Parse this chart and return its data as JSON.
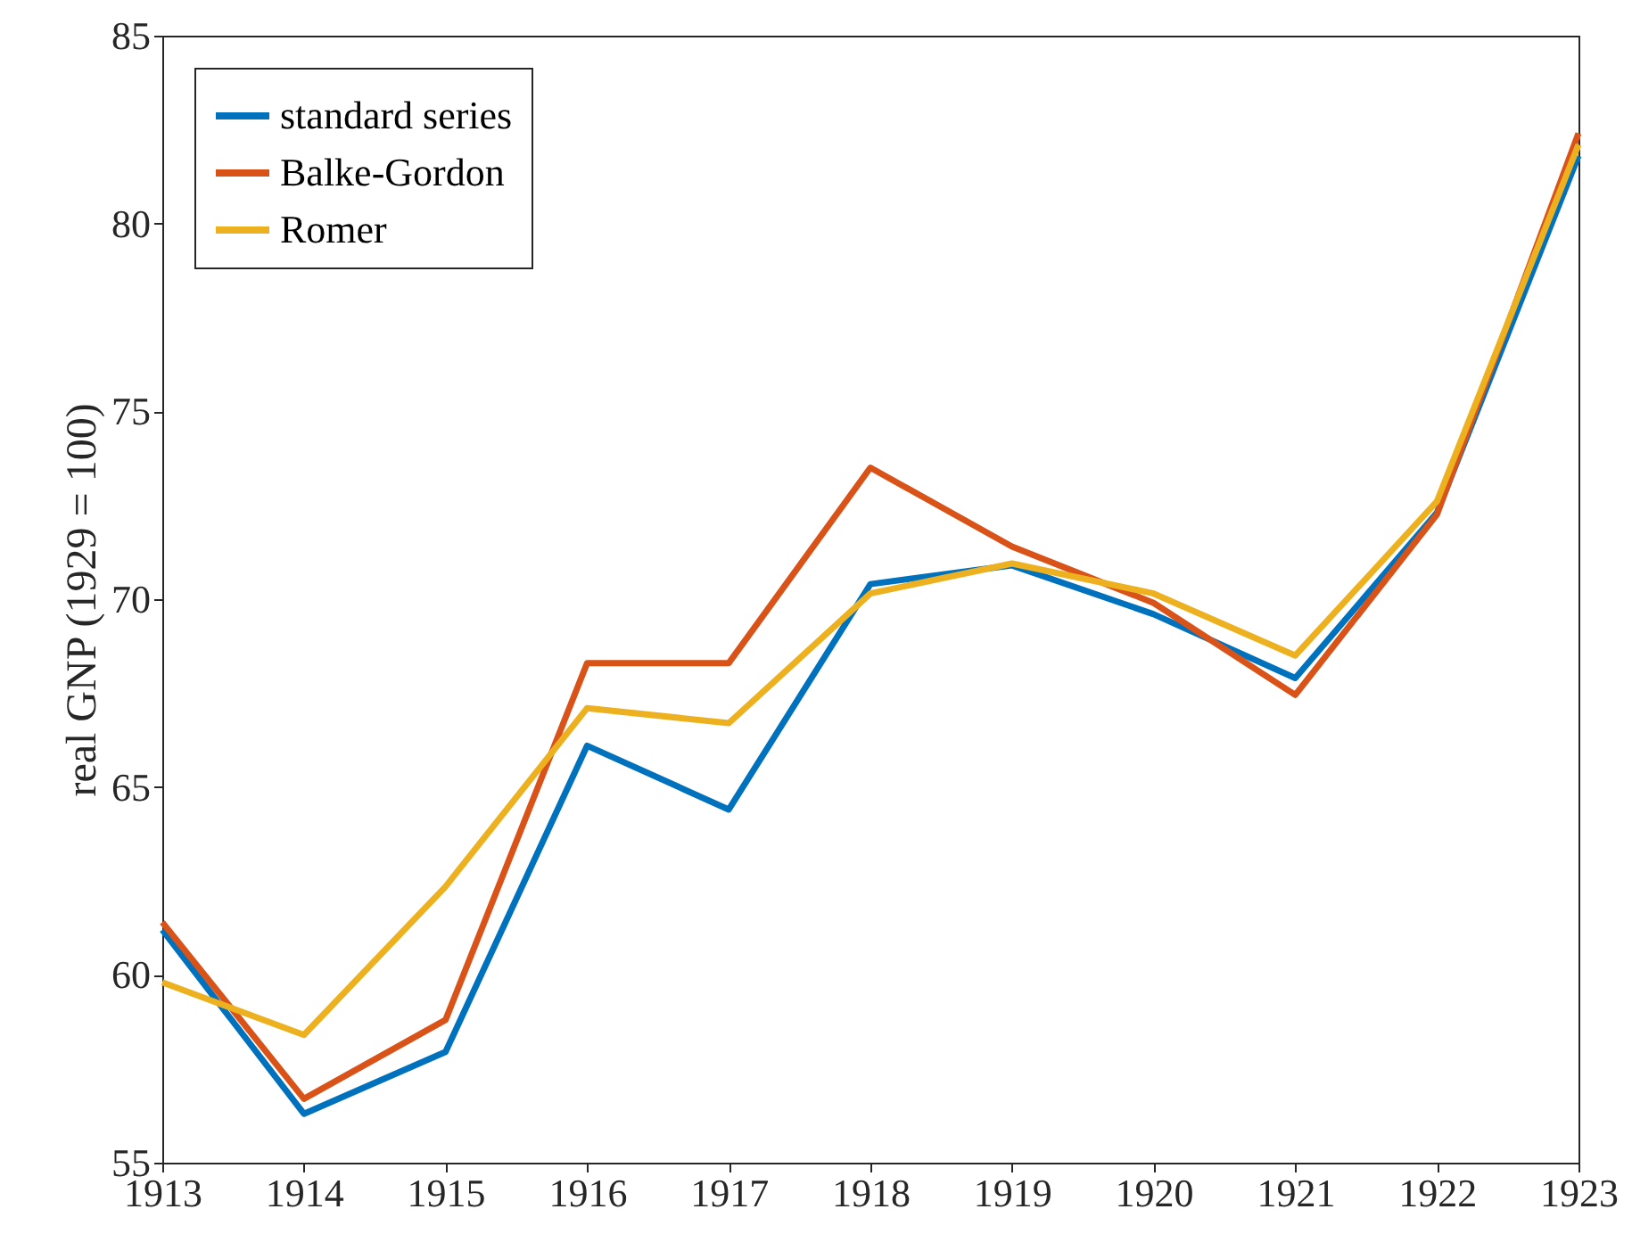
{
  "chart_data": {
    "type": "line",
    "ylabel": "real GNP (1929 = 100)",
    "x": [
      1913,
      1914,
      1915,
      1916,
      1917,
      1918,
      1919,
      1920,
      1921,
      1922,
      1923
    ],
    "series": [
      {
        "name": "standard series",
        "color": "#0072bd",
        "values": [
          61.2,
          56.3,
          57.95,
          66.1,
          64.4,
          70.4,
          70.9,
          69.6,
          67.9,
          72.3,
          81.8
        ]
      },
      {
        "name": "Balke-Gordon",
        "color": "#d95319",
        "values": [
          61.4,
          56.7,
          58.8,
          68.3,
          68.3,
          73.5,
          71.4,
          69.9,
          67.45,
          72.25,
          82.4
        ]
      },
      {
        "name": "Romer",
        "color": "#edb120",
        "values": [
          59.8,
          58.4,
          62.35,
          67.1,
          66.7,
          70.15,
          70.95,
          70.15,
          68.5,
          72.6,
          82.1
        ]
      }
    ],
    "xlim": [
      1913,
      1923
    ],
    "xticks": [
      1913,
      1914,
      1915,
      1916,
      1917,
      1918,
      1919,
      1920,
      1921,
      1922,
      1923
    ],
    "ylim": [
      55,
      85
    ],
    "yticks": [
      55,
      60,
      65,
      70,
      75,
      80,
      85
    ],
    "grid": false,
    "legend": "top left",
    "marker": "none",
    "line_style": "solid"
  }
}
